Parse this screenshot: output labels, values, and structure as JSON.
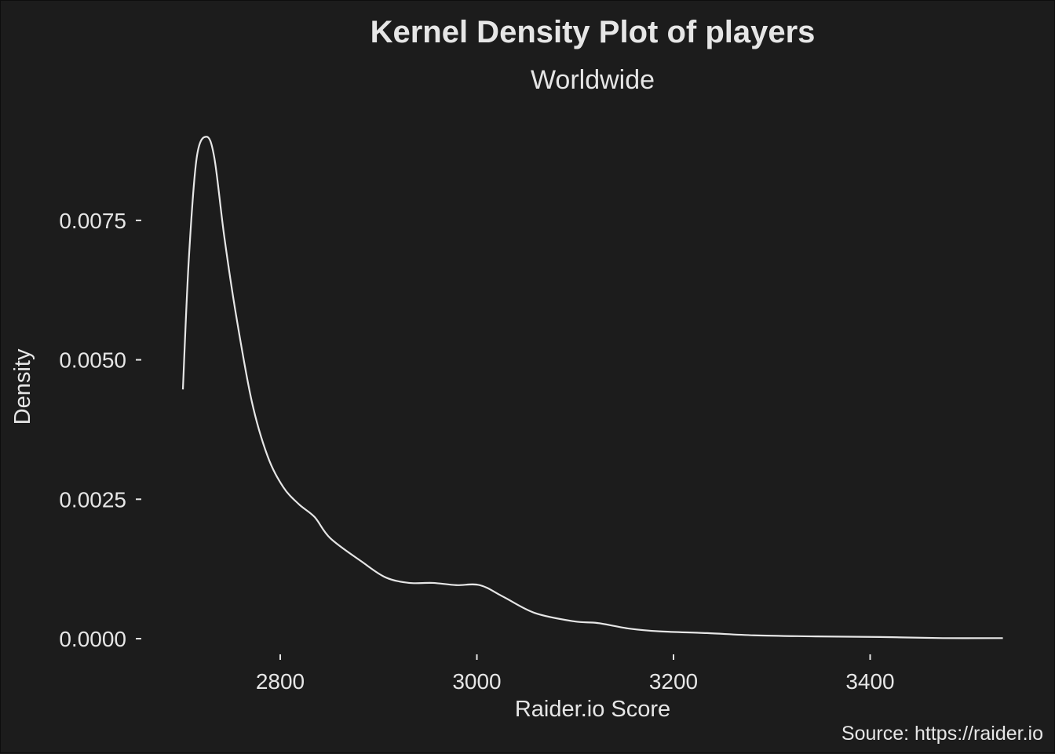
{
  "chart_data": {
    "type": "line",
    "title": "Kernel Density Plot of players",
    "subtitle": "Worldwide",
    "caption": "Source: https://raider.io",
    "xlabel": "Raider.io Score",
    "ylabel": "Density",
    "xlim": [
      2660,
      3575
    ],
    "ylim": [
      -0.00045,
      0.0094
    ],
    "x_ticks": [
      2800,
      3000,
      3200,
      3400
    ],
    "x_tick_labels": [
      "2800",
      "3000",
      "3200",
      "3400"
    ],
    "y_ticks": [
      0,
      0.0025,
      0.005,
      0.0075
    ],
    "y_tick_labels": [
      "0.0000",
      "0.0025",
      "0.0050",
      "0.0075"
    ],
    "grid": false,
    "line_color": "#e6e6e6",
    "background": "#1c1c1c",
    "series": [
      {
        "name": "density",
        "x": [
          2701,
          2707,
          2715,
          2725,
          2733,
          2743,
          2755,
          2771,
          2787,
          2803,
          2819,
          2835,
          2851,
          2883,
          2907,
          2931,
          2955,
          2979,
          3003,
          3027,
          3059,
          3099,
          3123,
          3155,
          3187,
          3234,
          3282,
          3346,
          3410,
          3474,
          3535
        ],
        "y": [
          0.00447,
          0.0068,
          0.00862,
          0.009,
          0.00862,
          0.00722,
          0.00581,
          0.00426,
          0.00328,
          0.00272,
          0.00241,
          0.00218,
          0.0018,
          0.00138,
          0.0011,
          0.001,
          0.001,
          0.00096,
          0.00096,
          0.00075,
          0.00046,
          0.00031,
          0.00028,
          0.00018,
          0.00013,
          0.0001,
          6e-05,
          4e-05,
          3e-05,
          1e-05,
          1e-05
        ]
      }
    ]
  }
}
